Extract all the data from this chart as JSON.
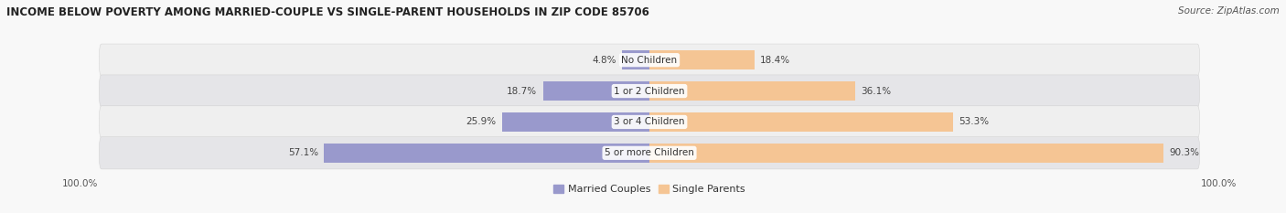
{
  "title": "INCOME BELOW POVERTY AMONG MARRIED-COUPLE VS SINGLE-PARENT HOUSEHOLDS IN ZIP CODE 85706",
  "source": "Source: ZipAtlas.com",
  "categories": [
    "No Children",
    "1 or 2 Children",
    "3 or 4 Children",
    "5 or more Children"
  ],
  "married_values": [
    4.8,
    18.7,
    25.9,
    57.1
  ],
  "single_values": [
    18.4,
    36.1,
    53.3,
    90.3
  ],
  "max_val": 100.0,
  "married_color": "#9999cc",
  "single_color": "#f5c594",
  "row_bg_light": "#efefef",
  "row_bg_dark": "#e5e5e8",
  "fig_bg": "#f8f8f8",
  "title_fontsize": 8.5,
  "source_fontsize": 7.5,
  "label_fontsize": 7.5,
  "category_fontsize": 7.5,
  "axis_label_fontsize": 7.5,
  "legend_fontsize": 8,
  "bar_height": 0.6,
  "figsize": [
    14.06,
    2.33
  ],
  "dpi": 100
}
